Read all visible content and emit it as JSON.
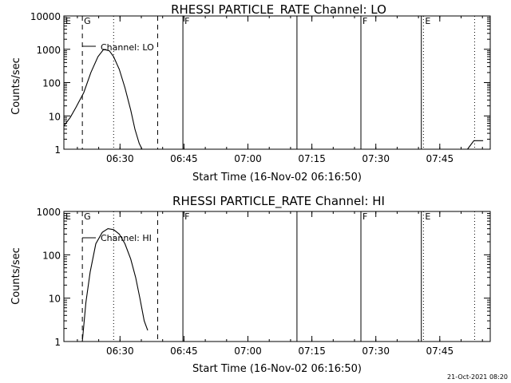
{
  "footer_timestamp": "21-Oct-2021 08:20",
  "chart_data": [
    {
      "type": "line",
      "title": "RHESSI PARTICLE_RATE Channel: LO",
      "xlabel": "Start Time (16-Nov-02 06:16:50)",
      "ylabel": "Counts/sec",
      "yscale": "log",
      "xlim": [
        "06:16:50",
        "07:56:50"
      ],
      "ylim": [
        1,
        10000
      ],
      "x_ticks": [
        "06:30",
        "06:45",
        "07:00",
        "07:15",
        "07:30",
        "07:45"
      ],
      "y_ticks": [
        "1",
        "10",
        "100",
        "1000",
        "10000"
      ],
      "legend": "Channel: LO",
      "markers": [
        {
          "label": "E",
          "time": "06:16:50",
          "style": "solid"
        },
        {
          "label": "G",
          "time": "06:21:10",
          "style": "dashed"
        },
        {
          "label": "",
          "time": "06:38:50",
          "style": "dashed"
        },
        {
          "label": "F",
          "time": "06:44:45",
          "style": "solid"
        },
        {
          "label": "",
          "time": "07:11:30",
          "style": "solid"
        },
        {
          "label": "F",
          "time": "07:26:30",
          "style": "solid"
        },
        {
          "label": "",
          "time": "07:40:40",
          "style": "solid"
        },
        {
          "label": "E",
          "time": "07:41:10",
          "style": "dotted"
        },
        {
          "label": "",
          "time": "07:53:10",
          "style": "dotted"
        },
        {
          "label": "",
          "time": "06:28:30",
          "style": "dotted"
        }
      ],
      "series": [
        {
          "name": "Channel: LO",
          "x": [
            "06:16:50",
            "06:18:20",
            "06:19:40",
            "06:21:30",
            "06:23:10",
            "06:24:50",
            "06:26:10",
            "06:27:30",
            "06:28:30",
            "06:29:50",
            "06:31:10",
            "06:32:30",
            "06:33:30",
            "06:34:30",
            "06:35:10"
          ],
          "y": [
            5,
            9,
            18,
            50,
            200,
            600,
            1000,
            900,
            600,
            250,
            70,
            15,
            4,
            1.5,
            1
          ]
        },
        {
          "name": "",
          "x": [
            "07:51:30",
            "07:53:00",
            "07:53:00",
            "07:55:10"
          ],
          "y": [
            1,
            1.8,
            1.8,
            1.8
          ]
        }
      ]
    },
    {
      "type": "line",
      "title": "RHESSI PARTICLE_RATE Channel: HI",
      "xlabel": "Start Time (16-Nov-02 06:16:50)",
      "ylabel": "Counts/sec",
      "yscale": "log",
      "xlim": [
        "06:16:50",
        "07:56:50"
      ],
      "ylim": [
        1,
        1000
      ],
      "x_ticks": [
        "06:30",
        "06:45",
        "07:00",
        "07:15",
        "07:30",
        "07:45"
      ],
      "y_ticks": [
        "1",
        "10",
        "100",
        "1000"
      ],
      "legend": "Channel: HI",
      "markers": [
        {
          "label": "E",
          "time": "06:16:50",
          "style": "solid"
        },
        {
          "label": "G",
          "time": "06:21:10",
          "style": "dashed"
        },
        {
          "label": "",
          "time": "06:38:50",
          "style": "dashed"
        },
        {
          "label": "F",
          "time": "06:44:45",
          "style": "solid"
        },
        {
          "label": "",
          "time": "07:11:30",
          "style": "solid"
        },
        {
          "label": "F",
          "time": "07:26:30",
          "style": "solid"
        },
        {
          "label": "",
          "time": "07:40:40",
          "style": "solid"
        },
        {
          "label": "E",
          "time": "07:41:10",
          "style": "dotted"
        },
        {
          "label": "",
          "time": "07:53:10",
          "style": "dotted"
        },
        {
          "label": "",
          "time": "06:28:30",
          "style": "dotted"
        }
      ],
      "series": [
        {
          "name": "Channel: HI",
          "x": [
            "06:21:10",
            "06:22:00",
            "06:23:00",
            "06:24:20",
            "06:25:50",
            "06:27:10",
            "06:28:30",
            "06:29:50",
            "06:31:10",
            "06:32:30",
            "06:33:40",
            "06:34:40",
            "06:35:40",
            "06:36:30"
          ],
          "y": [
            1,
            8,
            40,
            180,
            330,
            400,
            380,
            300,
            180,
            80,
            30,
            10,
            3,
            1.8
          ]
        }
      ]
    }
  ]
}
